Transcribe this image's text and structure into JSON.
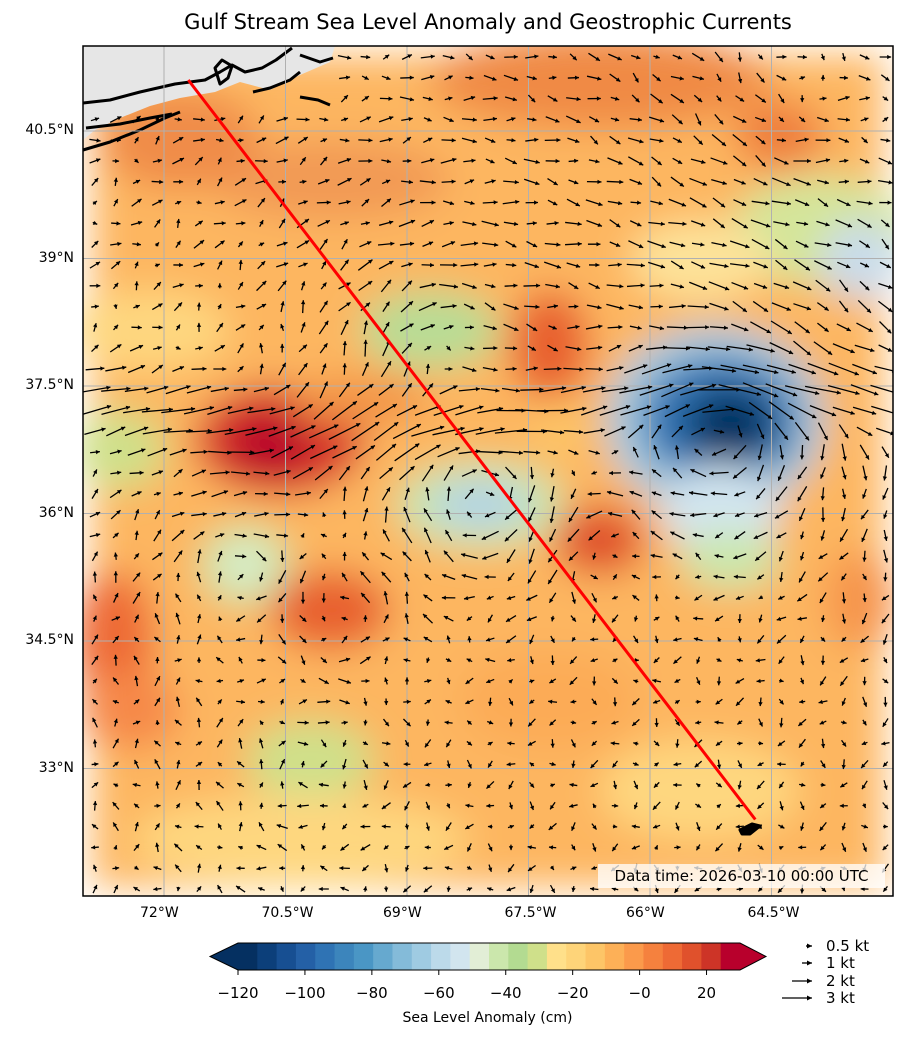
{
  "title": "Gulf Stream Sea Level Anomaly and Geostrophic Currents",
  "timestamp": "Data time: 2026-03-10 00:00 UTC",
  "lat_labels": [
    "40.5°N",
    "39°N",
    "37.5°N",
    "36°N",
    "34.5°N",
    "33°N"
  ],
  "lon_labels": [
    "72°W",
    "70.5°W",
    "69°W",
    "67.5°W",
    "66°W",
    "64.5°W"
  ],
  "colorbar": {
    "label": "Sea Level Anomaly (cm)",
    "ticks": [
      "−120",
      "−100",
      "−80",
      "−60",
      "−40",
      "−20",
      "−0",
      "20"
    ],
    "range": [
      -120,
      30
    ],
    "colors": [
      "#053061",
      "#0c3f7a",
      "#174f92",
      "#2460a6",
      "#2f73b4",
      "#3c85bc",
      "#4a96c5",
      "#66a9cf",
      "#84bbd9",
      "#9fcbe2",
      "#bcdaea",
      "#d2e5ef",
      "#e2eed6",
      "#cbe7ac",
      "#b3db91",
      "#cfe08a",
      "#ffe08a",
      "#fed479",
      "#fdc567",
      "#fdb057",
      "#fb9a4b",
      "#f5813e",
      "#ee6a35",
      "#e0512c",
      "#cd3427",
      "#b8002c"
    ]
  },
  "quiver_key": [
    "0.5 kt",
    "1 kt",
    "2 kt",
    "3 kt"
  ],
  "map": {
    "lon_range": [
      -73,
      -63
    ],
    "lat_range": [
      31.5,
      41.5
    ],
    "track": {
      "start": [
        -71.7,
        41.1
      ],
      "end": [
        -64.7,
        32.4
      ],
      "color": "#ff0000"
    }
  }
}
